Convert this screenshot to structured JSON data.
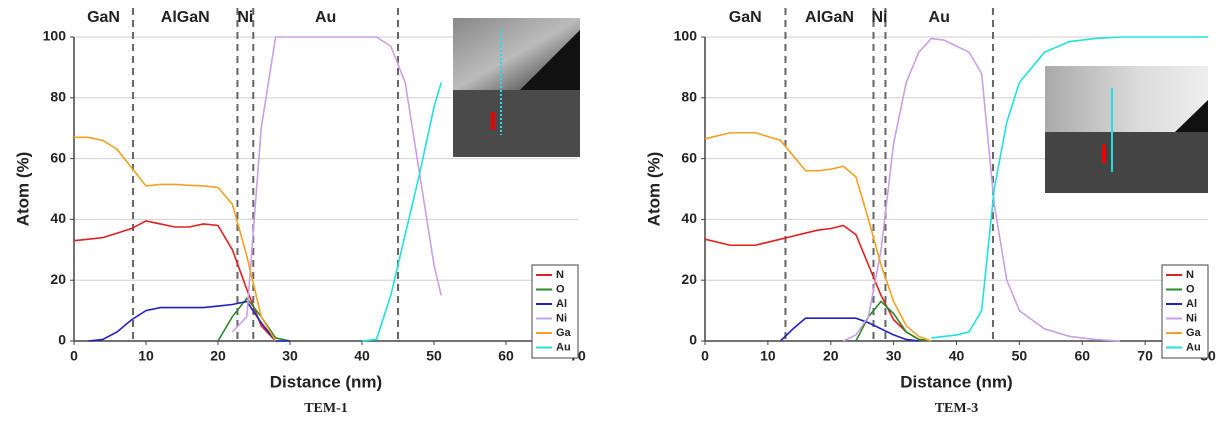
{
  "chart_data": [
    {
      "type": "line",
      "title": "TEM-1",
      "xlabel": "Distance (nm)",
      "ylabel": "Atom (%)",
      "xlim": [
        0,
        70
      ],
      "xticks": [
        0,
        10,
        20,
        30,
        40,
        50,
        60,
        70
      ],
      "ylim": [
        0,
        100
      ],
      "yticks": [
        0,
        20,
        40,
        60,
        80,
        100
      ],
      "grid": true,
      "legend": "lower right",
      "regions": [
        "GaN",
        "AlGaN",
        "Ni",
        "Au"
      ],
      "boundaries": [
        8.2,
        22.7,
        24.9,
        45
      ],
      "x": [
        0,
        2,
        4,
        6,
        8,
        10,
        12,
        14,
        16,
        18,
        20,
        22,
        24,
        26,
        28,
        30,
        32,
        34,
        36,
        38,
        40,
        42,
        44,
        46,
        48,
        50,
        51
      ],
      "series": [
        {
          "name": "N",
          "color": "#e02020",
          "values": [
            33,
            33.5,
            34,
            35.5,
            37,
            39.5,
            38.5,
            37.5,
            37.5,
            38.5,
            38,
            30,
            17,
            5,
            0,
            null,
            null,
            null,
            null,
            null,
            null,
            null,
            null,
            null,
            null,
            null,
            null
          ]
        },
        {
          "name": "O",
          "color": "#2a8a2a",
          "values": [
            null,
            null,
            null,
            null,
            null,
            null,
            null,
            null,
            null,
            null,
            0,
            8,
            14,
            8,
            1,
            0,
            null,
            null,
            null,
            null,
            null,
            null,
            null,
            null,
            null,
            null,
            null
          ]
        },
        {
          "name": "Al",
          "color": "#2020c0",
          "values": [
            null,
            0,
            0.5,
            3,
            7,
            10,
            11,
            11,
            11,
            11,
            11.5,
            12,
            13,
            6,
            0,
            0,
            null,
            null,
            null,
            null,
            null,
            null,
            null,
            null,
            null,
            null,
            null
          ]
        },
        {
          "name": "Ni",
          "color": "#c8a0e8",
          "values": [
            null,
            null,
            null,
            null,
            null,
            null,
            null,
            null,
            null,
            null,
            null,
            3,
            8,
            70,
            100,
            100,
            100,
            100,
            100,
            100,
            100,
            100,
            97,
            85,
            55,
            25,
            15
          ]
        },
        {
          "name": "Ga",
          "color": "#f5a020",
          "values": [
            67,
            67,
            66,
            63,
            57,
            51,
            51.5,
            51.5,
            51.2,
            51,
            50.5,
            45,
            28,
            8,
            0,
            null,
            null,
            null,
            null,
            null,
            null,
            null,
            null,
            null,
            null,
            null,
            null
          ]
        },
        {
          "name": "Au",
          "color": "#20e0e0",
          "values": [
            null,
            null,
            null,
            null,
            null,
            null,
            null,
            null,
            null,
            null,
            null,
            null,
            null,
            null,
            null,
            null,
            null,
            null,
            null,
            null,
            0,
            0.5,
            15,
            35,
            55,
            77,
            85
          ]
        }
      ]
    },
    {
      "type": "line",
      "title": "TEM-3",
      "xlabel": "Distance (nm)",
      "ylabel": "Atom (%)",
      "xlim": [
        0,
        80
      ],
      "xticks": [
        0,
        10,
        20,
        30,
        40,
        50,
        60,
        70,
        80
      ],
      "ylim": [
        0,
        100
      ],
      "yticks": [
        0,
        20,
        40,
        60,
        80,
        100
      ],
      "grid": true,
      "legend": "lower right",
      "regions": [
        "GaN",
        "AlGaN",
        "Ni",
        "Au"
      ],
      "boundaries": [
        12.8,
        26.8,
        28.7,
        45.8
      ],
      "x": [
        0,
        4,
        8,
        12,
        14,
        16,
        18,
        20,
        22,
        24,
        26,
        28,
        30,
        32,
        34,
        36,
        38,
        40,
        42,
        44,
        46,
        48,
        50,
        54,
        58,
        62,
        66,
        70,
        75,
        80
      ],
      "series": [
        {
          "name": "N",
          "color": "#e02020",
          "values": [
            33.5,
            31.5,
            31.5,
            33.5,
            34.5,
            35.5,
            36.5,
            37,
            38,
            35,
            25,
            15,
            7,
            3,
            0.5,
            0,
            null,
            null,
            null,
            null,
            null,
            null,
            null,
            null,
            null,
            null,
            null,
            null,
            null,
            null
          ]
        },
        {
          "name": "O",
          "color": "#2a8a2a",
          "values": [
            null,
            null,
            null,
            null,
            null,
            null,
            null,
            null,
            null,
            0,
            8,
            13,
            9,
            3,
            0.5,
            0,
            null,
            null,
            null,
            null,
            null,
            null,
            null,
            null,
            null,
            null,
            null,
            null,
            null,
            null
          ]
        },
        {
          "name": "Al",
          "color": "#2020c0",
          "values": [
            null,
            null,
            null,
            0,
            4,
            7.5,
            7.5,
            7.5,
            7.5,
            7.5,
            6,
            4,
            2,
            0.5,
            0,
            null,
            null,
            null,
            null,
            null,
            null,
            null,
            null,
            null,
            null,
            null,
            null,
            null,
            null,
            null
          ]
        },
        {
          "name": "Ni",
          "color": "#c8a0e8",
          "values": [
            null,
            null,
            null,
            null,
            null,
            null,
            null,
            null,
            0,
            2,
            8,
            30,
            65,
            85,
            95,
            99.5,
            99,
            97,
            95,
            88,
            45,
            20,
            10,
            4,
            1.5,
            0.5,
            0,
            null,
            null,
            null
          ]
        },
        {
          "name": "Ga",
          "color": "#f5a020",
          "values": [
            66.5,
            68.5,
            68.5,
            66,
            61,
            56,
            56,
            56.5,
            57.5,
            54,
            40,
            25,
            13,
            5,
            1.5,
            0,
            null,
            null,
            null,
            null,
            null,
            null,
            null,
            null,
            null,
            null,
            null,
            null,
            null,
            null
          ]
        },
        {
          "name": "Au",
          "color": "#20e0e0",
          "values": [
            null,
            null,
            null,
            null,
            null,
            null,
            null,
            null,
            null,
            null,
            null,
            null,
            null,
            null,
            null,
            1,
            1.5,
            2,
            3,
            10,
            50,
            72,
            85,
            95,
            98.5,
            99.5,
            100,
            100,
            100,
            100
          ]
        }
      ]
    }
  ]
}
